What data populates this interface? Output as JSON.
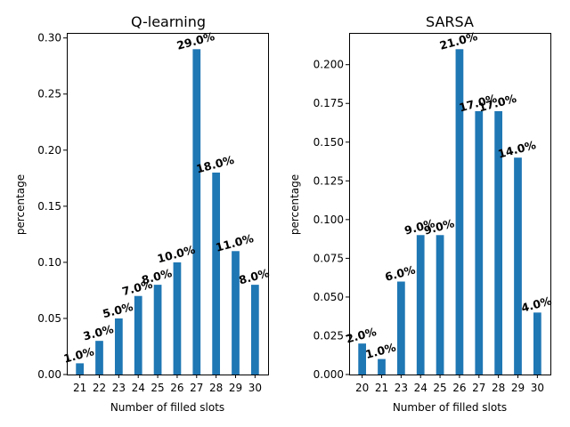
{
  "chart_data": [
    {
      "type": "bar",
      "title": "Q-learning",
      "xlabel": "Number of filled slots",
      "ylabel": "percentage",
      "categories": [
        "21",
        "22",
        "23",
        "24",
        "25",
        "26",
        "27",
        "28",
        "29",
        "30"
      ],
      "values": [
        0.01,
        0.03,
        0.05,
        0.07,
        0.08,
        0.1,
        0.29,
        0.18,
        0.11,
        0.08
      ],
      "data_labels": [
        "1.0%",
        "3.0%",
        "5.0%",
        "7.0%",
        "8.0%",
        "10.0%",
        "29.0%",
        "18.0%",
        "11.0%",
        "8.0%"
      ],
      "yticks": [
        "0.00",
        "0.05",
        "0.10",
        "0.15",
        "0.20",
        "0.25",
        "0.30"
      ],
      "ylim": [
        0,
        0.3045
      ],
      "color": "#1f77b4",
      "grid": false
    },
    {
      "type": "bar",
      "title": "SARSA",
      "xlabel": "Number of filled slots",
      "ylabel": "percentage",
      "categories": [
        "20",
        "21",
        "23",
        "24",
        "25",
        "26",
        "27",
        "28",
        "29",
        "30"
      ],
      "values": [
        0.02,
        0.01,
        0.06,
        0.09,
        0.09,
        0.21,
        0.17,
        0.17,
        0.14,
        0.04
      ],
      "data_labels": [
        "2.0%",
        "1.0%",
        "6.0%",
        "9.0%",
        "9.0%",
        "21.0%",
        "17.0%",
        "17.0%",
        "14.0%",
        "4.0%"
      ],
      "yticks": [
        "0.000",
        "0.025",
        "0.050",
        "0.075",
        "0.100",
        "0.125",
        "0.150",
        "0.175",
        "0.200"
      ],
      "ylim": [
        0,
        0.2205
      ],
      "color": "#1f77b4",
      "grid": false
    }
  ]
}
